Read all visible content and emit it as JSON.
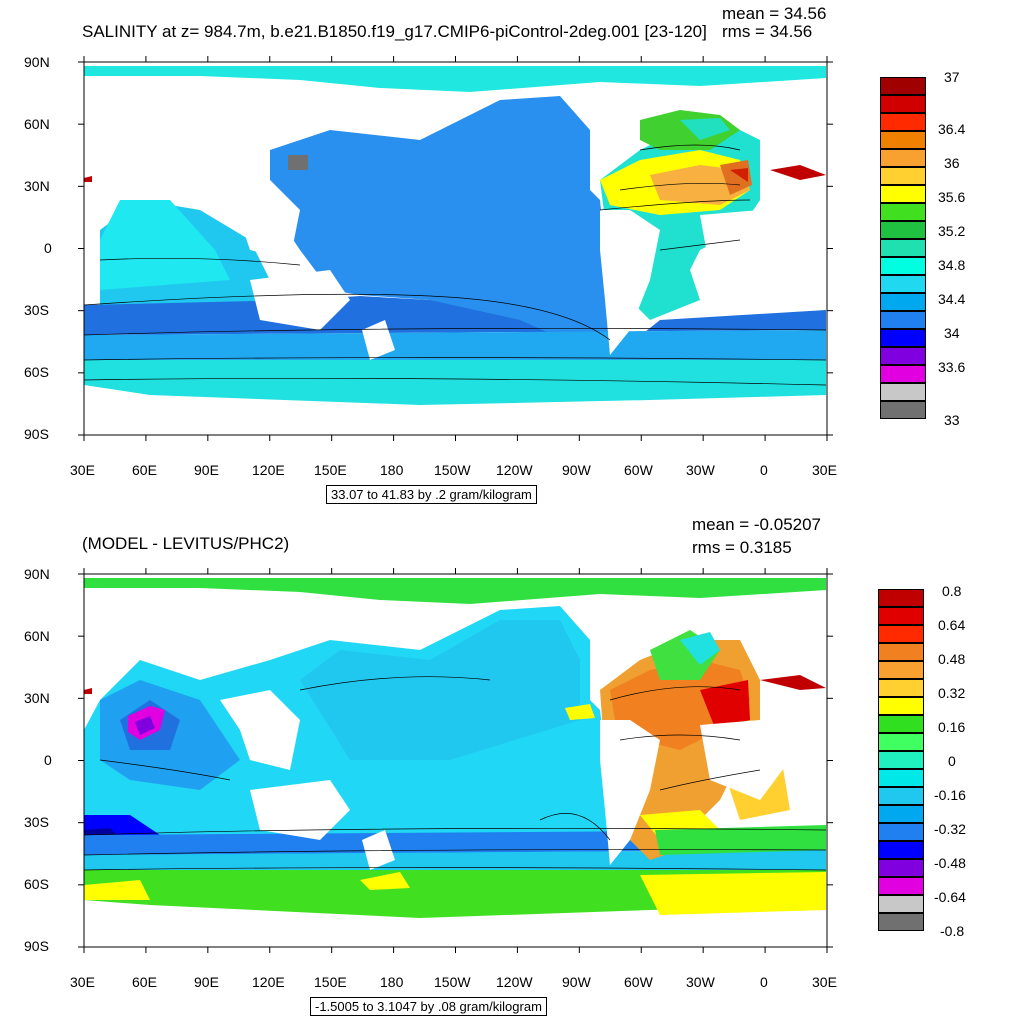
{
  "panels": [
    {
      "title": "SALINITY at z= 984.7m, b.e21.B1850.f19_g17.CMIP6-piControl-2deg.001 [23-120]",
      "mean_label": "mean = 34.56",
      "rms_label": "rms = 34.56",
      "range_label": "33.07 to 41.83 by .2 gram/kilogram",
      "colorbar_labels": [
        "37",
        "36.4",
        "36",
        "35.6",
        "35.2",
        "34.8",
        "34.4",
        "34",
        "33.6",
        "33"
      ],
      "colorbar_colors": [
        "#a00000",
        "#d00000",
        "#ff2a00",
        "#f08000",
        "#f8a030",
        "#ffd030",
        "#ffff00",
        "#40e020",
        "#20c040",
        "#20e0b0",
        "#00ffe0",
        "#20d8f0",
        "#00a8f0",
        "#2080f0",
        "#0000ff",
        "#8000e0",
        "#e000e0",
        "#c8c8c8",
        "#707070"
      ]
    },
    {
      "title": "(MODEL - LEVITUS/PHC2)",
      "mean_label": "mean = -0.05207",
      "rms_label": "rms = 0.3185",
      "range_label": "-1.5005 to 3.1047 by .08 gram/kilogram",
      "colorbar_labels": [
        "0.8",
        "0.64",
        "0.48",
        "0.32",
        "0.16",
        "0",
        "-0.16",
        "-0.32",
        "-0.48",
        "-0.64",
        "-0.8"
      ],
      "colorbar_colors": [
        "#c00000",
        "#e00000",
        "#ff2a00",
        "#f08020",
        "#f8a030",
        "#ffd030",
        "#ffff00",
        "#30e020",
        "#40ff60",
        "#20f0c0",
        "#00e8e8",
        "#20c8f0",
        "#00a8f0",
        "#2080f0",
        "#0000ff",
        "#8000e0",
        "#e000e0",
        "#c8c8c8",
        "#707070"
      ]
    }
  ],
  "axes": {
    "lat_labels": [
      "90N",
      "60N",
      "30N",
      "0",
      "30S",
      "60S",
      "90S"
    ],
    "lon_labels": [
      "30E",
      "60E",
      "90E",
      "120E",
      "150E",
      "180",
      "150W",
      "120W",
      "90W",
      "60W",
      "30W",
      "0",
      "30E"
    ]
  },
  "colors": {
    "land": "#ffffff",
    "panel1_pacific": "#2a90f0",
    "panel1_indian": "#20c8f0",
    "panel2_base": "#20d8f5"
  }
}
